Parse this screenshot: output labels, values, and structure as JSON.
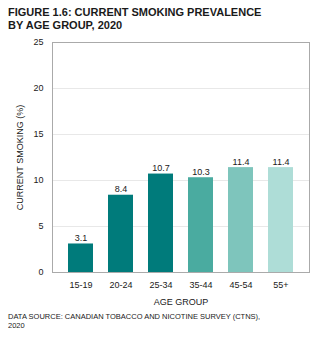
{
  "chart_data": {
    "type": "bar",
    "title": "FIGURE 1.6: CURRENT SMOKING PREVALENCE",
    "subtitle": "BY AGE GROUP, 2020",
    "source": "DATA SOURCE: CANADIAN TOBACCO AND NICOTINE SURVEY (CTNS),\n2020",
    "categories": [
      "15-19",
      "20-24",
      "25-34",
      "35-44",
      "45-54",
      "55+"
    ],
    "values": [
      3.1,
      8.4,
      10.7,
      10.3,
      11.4,
      11.4
    ],
    "colors": [
      "#007B7B",
      "#007B7B",
      "#007B7B",
      "#4AABA0",
      "#7EC5BC",
      "#AEDDD7"
    ],
    "xlabel": "AGE GROUP",
    "ylabel": "CURRENT SMOKING (%)",
    "ylim": [
      0,
      25
    ],
    "yticks": [
      0,
      5,
      10,
      15,
      20,
      25
    ],
    "grid": true,
    "data_labels": true
  }
}
